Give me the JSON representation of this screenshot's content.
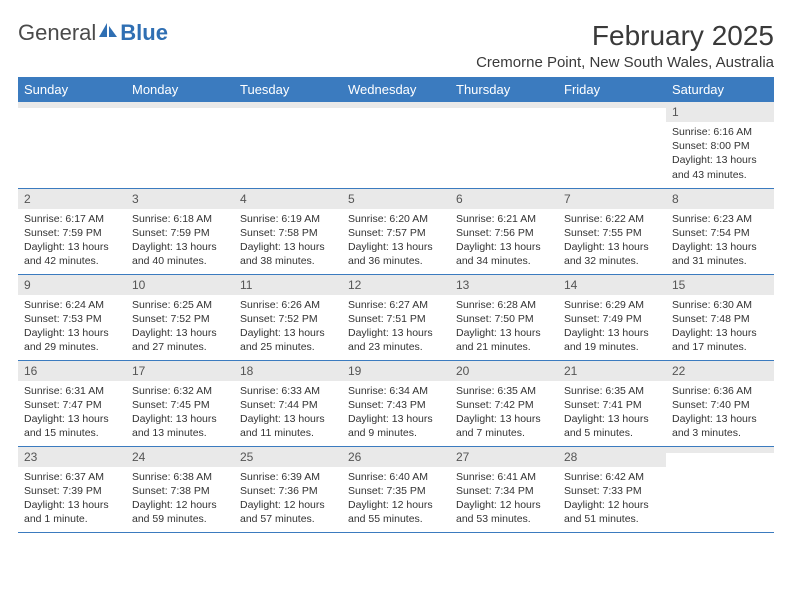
{
  "logo": {
    "text_general": "General",
    "text_blue": "Blue"
  },
  "title": "February 2025",
  "subtitle": "Cremorne Point, New South Wales, Australia",
  "colors": {
    "header_bg": "#3b7bbf",
    "header_fg": "#ffffff",
    "daynum_bg": "#e9e9e9",
    "row_border": "#3b7bbf",
    "text": "#333333",
    "logo_blue": "#2f6fb3"
  },
  "day_names": [
    "Sunday",
    "Monday",
    "Tuesday",
    "Wednesday",
    "Thursday",
    "Friday",
    "Saturday"
  ],
  "weeks": [
    [
      {
        "n": "",
        "lines": []
      },
      {
        "n": "",
        "lines": []
      },
      {
        "n": "",
        "lines": []
      },
      {
        "n": "",
        "lines": []
      },
      {
        "n": "",
        "lines": []
      },
      {
        "n": "",
        "lines": []
      },
      {
        "n": "1",
        "lines": [
          "Sunrise: 6:16 AM",
          "Sunset: 8:00 PM",
          "Daylight: 13 hours and 43 minutes."
        ]
      }
    ],
    [
      {
        "n": "2",
        "lines": [
          "Sunrise: 6:17 AM",
          "Sunset: 7:59 PM",
          "Daylight: 13 hours and 42 minutes."
        ]
      },
      {
        "n": "3",
        "lines": [
          "Sunrise: 6:18 AM",
          "Sunset: 7:59 PM",
          "Daylight: 13 hours and 40 minutes."
        ]
      },
      {
        "n": "4",
        "lines": [
          "Sunrise: 6:19 AM",
          "Sunset: 7:58 PM",
          "Daylight: 13 hours and 38 minutes."
        ]
      },
      {
        "n": "5",
        "lines": [
          "Sunrise: 6:20 AM",
          "Sunset: 7:57 PM",
          "Daylight: 13 hours and 36 minutes."
        ]
      },
      {
        "n": "6",
        "lines": [
          "Sunrise: 6:21 AM",
          "Sunset: 7:56 PM",
          "Daylight: 13 hours and 34 minutes."
        ]
      },
      {
        "n": "7",
        "lines": [
          "Sunrise: 6:22 AM",
          "Sunset: 7:55 PM",
          "Daylight: 13 hours and 32 minutes."
        ]
      },
      {
        "n": "8",
        "lines": [
          "Sunrise: 6:23 AM",
          "Sunset: 7:54 PM",
          "Daylight: 13 hours and 31 minutes."
        ]
      }
    ],
    [
      {
        "n": "9",
        "lines": [
          "Sunrise: 6:24 AM",
          "Sunset: 7:53 PM",
          "Daylight: 13 hours and 29 minutes."
        ]
      },
      {
        "n": "10",
        "lines": [
          "Sunrise: 6:25 AM",
          "Sunset: 7:52 PM",
          "Daylight: 13 hours and 27 minutes."
        ]
      },
      {
        "n": "11",
        "lines": [
          "Sunrise: 6:26 AM",
          "Sunset: 7:52 PM",
          "Daylight: 13 hours and 25 minutes."
        ]
      },
      {
        "n": "12",
        "lines": [
          "Sunrise: 6:27 AM",
          "Sunset: 7:51 PM",
          "Daylight: 13 hours and 23 minutes."
        ]
      },
      {
        "n": "13",
        "lines": [
          "Sunrise: 6:28 AM",
          "Sunset: 7:50 PM",
          "Daylight: 13 hours and 21 minutes."
        ]
      },
      {
        "n": "14",
        "lines": [
          "Sunrise: 6:29 AM",
          "Sunset: 7:49 PM",
          "Daylight: 13 hours and 19 minutes."
        ]
      },
      {
        "n": "15",
        "lines": [
          "Sunrise: 6:30 AM",
          "Sunset: 7:48 PM",
          "Daylight: 13 hours and 17 minutes."
        ]
      }
    ],
    [
      {
        "n": "16",
        "lines": [
          "Sunrise: 6:31 AM",
          "Sunset: 7:47 PM",
          "Daylight: 13 hours and 15 minutes."
        ]
      },
      {
        "n": "17",
        "lines": [
          "Sunrise: 6:32 AM",
          "Sunset: 7:45 PM",
          "Daylight: 13 hours and 13 minutes."
        ]
      },
      {
        "n": "18",
        "lines": [
          "Sunrise: 6:33 AM",
          "Sunset: 7:44 PM",
          "Daylight: 13 hours and 11 minutes."
        ]
      },
      {
        "n": "19",
        "lines": [
          "Sunrise: 6:34 AM",
          "Sunset: 7:43 PM",
          "Daylight: 13 hours and 9 minutes."
        ]
      },
      {
        "n": "20",
        "lines": [
          "Sunrise: 6:35 AM",
          "Sunset: 7:42 PM",
          "Daylight: 13 hours and 7 minutes."
        ]
      },
      {
        "n": "21",
        "lines": [
          "Sunrise: 6:35 AM",
          "Sunset: 7:41 PM",
          "Daylight: 13 hours and 5 minutes."
        ]
      },
      {
        "n": "22",
        "lines": [
          "Sunrise: 6:36 AM",
          "Sunset: 7:40 PM",
          "Daylight: 13 hours and 3 minutes."
        ]
      }
    ],
    [
      {
        "n": "23",
        "lines": [
          "Sunrise: 6:37 AM",
          "Sunset: 7:39 PM",
          "Daylight: 13 hours and 1 minute."
        ]
      },
      {
        "n": "24",
        "lines": [
          "Sunrise: 6:38 AM",
          "Sunset: 7:38 PM",
          "Daylight: 12 hours and 59 minutes."
        ]
      },
      {
        "n": "25",
        "lines": [
          "Sunrise: 6:39 AM",
          "Sunset: 7:36 PM",
          "Daylight: 12 hours and 57 minutes."
        ]
      },
      {
        "n": "26",
        "lines": [
          "Sunrise: 6:40 AM",
          "Sunset: 7:35 PM",
          "Daylight: 12 hours and 55 minutes."
        ]
      },
      {
        "n": "27",
        "lines": [
          "Sunrise: 6:41 AM",
          "Sunset: 7:34 PM",
          "Daylight: 12 hours and 53 minutes."
        ]
      },
      {
        "n": "28",
        "lines": [
          "Sunrise: 6:42 AM",
          "Sunset: 7:33 PM",
          "Daylight: 12 hours and 51 minutes."
        ]
      },
      {
        "n": "",
        "lines": []
      }
    ]
  ]
}
